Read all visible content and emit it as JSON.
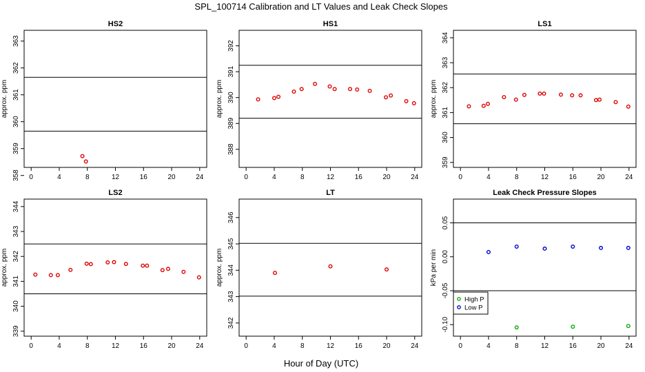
{
  "figure": {
    "title": "SPL_100714  Calibration and LT Values and Leak Check Slopes",
    "xlabel": "Hour of Day (UTC)"
  },
  "colors": {
    "points": "#dd0000",
    "high_p": "#00aa00",
    "low_p": "#0000cc",
    "axis": "#000000"
  },
  "chart_data": [
    {
      "type": "scatter",
      "title": "HS2",
      "ylabel": "approx. ppm",
      "xlim": [
        -1,
        25
      ],
      "ylim": [
        358.3,
        363.4
      ],
      "xticks": [
        0,
        4,
        8,
        12,
        16,
        20,
        24
      ],
      "yticks": [
        358,
        359,
        360,
        361,
        362,
        363
      ],
      "hlines": [
        359.65,
        361.65
      ],
      "series": [
        {
          "x": [
            7.3,
            7.8
          ],
          "y": [
            358.72,
            358.52
          ]
        }
      ]
    },
    {
      "type": "scatter",
      "title": "HS1",
      "ylabel": "approx. ppm",
      "xlim": [
        -1,
        25
      ],
      "ylim": [
        387.3,
        392.6
      ],
      "xticks": [
        0,
        4,
        8,
        12,
        16,
        20,
        24
      ],
      "yticks": [
        388,
        389,
        390,
        391,
        392
      ],
      "hlines": [
        389.2,
        391.25
      ],
      "series": [
        {
          "x": [
            1.7,
            4.0,
            4.6,
            6.8,
            7.9,
            9.8,
            11.9,
            12.6,
            14.8,
            15.8,
            17.6,
            19.9,
            20.6,
            22.8,
            23.9
          ],
          "y": [
            389.93,
            389.98,
            390.03,
            390.23,
            390.33,
            390.53,
            390.43,
            390.33,
            390.33,
            390.31,
            390.26,
            390.01,
            390.08,
            389.86,
            389.78
          ]
        }
      ]
    },
    {
      "type": "scatter",
      "title": "LS1",
      "ylabel": "approx. ppm",
      "xlim": [
        -1,
        25
      ],
      "ylim": [
        358.8,
        364.3
      ],
      "xticks": [
        0,
        4,
        8,
        12,
        16,
        20,
        24
      ],
      "yticks": [
        359,
        360,
        361,
        362,
        363,
        364
      ],
      "hlines": [
        360.55,
        362.55
      ],
      "series": [
        {
          "x": [
            1.2,
            3.3,
            3.9,
            6.2,
            7.9,
            9.1,
            11.3,
            11.9,
            14.3,
            15.9,
            17.1,
            19.3,
            19.8,
            22.1,
            23.9
          ],
          "y": [
            361.25,
            361.27,
            361.35,
            361.62,
            361.52,
            361.71,
            361.76,
            361.76,
            361.72,
            361.69,
            361.69,
            361.5,
            361.52,
            361.42,
            361.24
          ]
        }
      ]
    },
    {
      "type": "scatter",
      "title": "LS2",
      "ylabel": "approx. ppm",
      "xlim": [
        -1,
        25
      ],
      "ylim": [
        338.8,
        344.3
      ],
      "xticks": [
        0,
        4,
        8,
        12,
        16,
        20,
        24
      ],
      "yticks": [
        339,
        340,
        341,
        342,
        343,
        344
      ],
      "hlines": [
        340.5,
        342.5
      ],
      "series": [
        {
          "x": [
            0.6,
            2.8,
            3.8,
            5.6,
            7.9,
            8.5,
            10.9,
            11.8,
            13.5,
            15.9,
            16.5,
            18.7,
            19.5,
            21.7,
            23.9
          ],
          "y": [
            341.27,
            341.25,
            341.25,
            341.46,
            341.71,
            341.69,
            341.76,
            341.77,
            341.7,
            341.63,
            341.63,
            341.45,
            341.5,
            341.38,
            341.16
          ]
        }
      ]
    },
    {
      "type": "scatter",
      "title": "LT",
      "ylabel": "approx. ppm",
      "xlim": [
        -1,
        25
      ],
      "ylim": [
        341.5,
        346.7
      ],
      "xticks": [
        0,
        4,
        8,
        12,
        16,
        20,
        24
      ],
      "yticks": [
        342,
        343,
        344,
        345,
        346
      ],
      "hlines": [
        343.02,
        345.02
      ],
      "series": [
        {
          "x": [
            4.1,
            12.0,
            20.0
          ],
          "y": [
            343.9,
            344.15,
            344.03
          ]
        }
      ]
    },
    {
      "type": "scatter",
      "title": "Leak Check Pressure Slopes",
      "ylabel": "kPa per min",
      "xlim": [
        -1,
        25
      ],
      "ylim": [
        -0.117,
        0.085
      ],
      "xticks": [
        0,
        4,
        8,
        12,
        16,
        20,
        24
      ],
      "yticks": [
        -0.1,
        -0.05,
        0.0,
        0.05
      ],
      "ytick_labels": [
        "-0.10",
        "-0.05",
        "0.00",
        "0.05"
      ],
      "hlines": [
        -0.05,
        0.05
      ],
      "legend_position": "middle-left",
      "series": [
        {
          "name": "High P",
          "x": [
            8.0,
            16.0,
            23.9
          ],
          "y": [
            -0.104,
            -0.103,
            -0.102
          ]
        },
        {
          "name": "Low P",
          "x": [
            4.0,
            8.0,
            12.0,
            16.0,
            20.0,
            23.9
          ],
          "y": [
            0.007,
            0.015,
            0.012,
            0.015,
            0.013,
            0.013
          ]
        }
      ]
    }
  ]
}
